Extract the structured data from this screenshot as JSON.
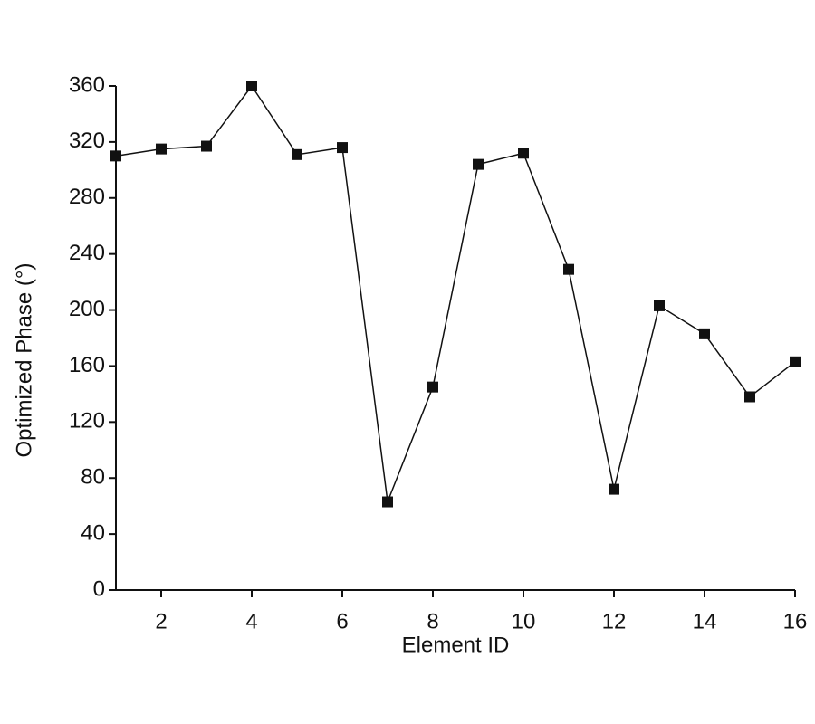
{
  "chart_data": {
    "type": "line",
    "x_label": "Element ID",
    "y_label": "Optimized Phase (°)",
    "x": [
      1,
      2,
      3,
      4,
      5,
      6,
      7,
      8,
      9,
      10,
      11,
      12,
      13,
      14,
      15,
      16
    ],
    "series": [
      {
        "color": "#111111",
        "values": [
          310,
          315,
          317,
          360,
          311,
          316,
          63,
          145,
          304,
          312,
          229,
          72,
          203,
          183,
          138,
          163
        ]
      }
    ],
    "xlim": [
      1,
      16
    ],
    "xticks": [
      2,
      4,
      6,
      8,
      10,
      12,
      14,
      16
    ],
    "ylim": [
      0,
      360
    ],
    "yticks": [
      0,
      40,
      80,
      120,
      160,
      200,
      240,
      280,
      320,
      360
    ]
  }
}
